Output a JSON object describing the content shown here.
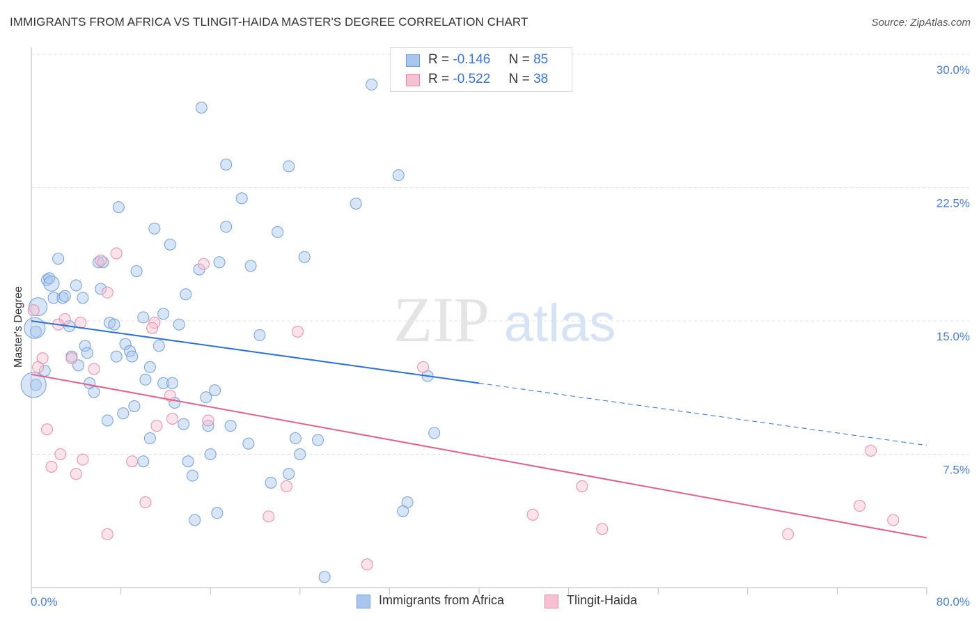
{
  "title": "IMMIGRANTS FROM AFRICA VS TLINGIT-HAIDA MASTER'S DEGREE CORRELATION CHART",
  "source": "Source: ZipAtlas.com",
  "watermark": {
    "zip": "ZIP",
    "atlas": "atlas"
  },
  "legend_top": [
    {
      "r_label": "R =",
      "r_value": "-0.146",
      "n_label": "N =",
      "n_value": "85",
      "color": "#a8c6ee",
      "border": "#6f9fdc"
    },
    {
      "r_label": "R =",
      "r_value": "-0.522",
      "n_label": "N =",
      "n_value": "38",
      "color": "#f6c0d0",
      "border": "#e98aa8"
    }
  ],
  "legend_bottom": [
    {
      "label": "Immigrants from Africa",
      "color": "#a8c6ee",
      "border": "#6f9fdc"
    },
    {
      "label": "Tlingit-Haida",
      "color": "#f6c0d0",
      "border": "#e98aa8"
    }
  ],
  "chart_data": {
    "type": "scatter",
    "title": "IMMIGRANTS FROM AFRICA VS TLINGIT-HAIDA MASTER'S DEGREE CORRELATION CHART",
    "xlabel": "",
    "ylabel": "Master's Degree",
    "xlim": [
      0,
      80
    ],
    "ylim": [
      0,
      30
    ],
    "x_ticks": [
      "0.0%",
      "80.0%"
    ],
    "y_ticks": [
      "7.5%",
      "15.0%",
      "22.5%",
      "30.0%"
    ],
    "y_tick_values": [
      7.5,
      15.0,
      22.5,
      30.0
    ],
    "grid": true,
    "legend_position": "top-center",
    "colors": {
      "blue": "#6f9fdc",
      "blue_fill": "#a8c6ee",
      "blue_line": "#2a6fd6",
      "pink": "#e98aa8",
      "pink_fill": "#f6c0d0",
      "pink_line": "#e0608c"
    },
    "series": [
      {
        "name": "Immigrants from Africa",
        "points": [
          [
            30.4,
            28.3
          ],
          [
            15.2,
            27.0
          ],
          [
            17.4,
            23.8
          ],
          [
            23.0,
            23.7
          ],
          [
            32.8,
            23.2
          ],
          [
            18.8,
            21.9
          ],
          [
            29.0,
            21.6
          ],
          [
            7.8,
            21.4
          ],
          [
            11.0,
            20.2
          ],
          [
            17.4,
            20.3
          ],
          [
            22.0,
            20.0
          ],
          [
            12.4,
            19.3
          ],
          [
            24.4,
            18.6
          ],
          [
            2.4,
            18.5
          ],
          [
            6.0,
            18.3
          ],
          [
            6.4,
            18.3
          ],
          [
            16.8,
            18.3
          ],
          [
            19.6,
            18.1
          ],
          [
            15.0,
            17.9
          ],
          [
            9.4,
            17.8
          ],
          [
            1.4,
            17.3
          ],
          [
            1.6,
            17.4
          ],
          [
            1.8,
            17.1
          ],
          [
            4.0,
            17.0
          ],
          [
            6.2,
            16.8
          ],
          [
            13.8,
            16.5
          ],
          [
            2.0,
            16.3
          ],
          [
            2.8,
            16.3
          ],
          [
            4.6,
            16.3
          ],
          [
            3.0,
            16.4
          ],
          [
            0.6,
            15.8
          ],
          [
            11.8,
            15.4
          ],
          [
            10.0,
            15.2
          ],
          [
            7.0,
            14.9
          ],
          [
            7.4,
            14.8
          ],
          [
            13.2,
            14.8
          ],
          [
            3.4,
            14.7
          ],
          [
            0.4,
            14.4
          ],
          [
            20.4,
            14.2
          ],
          [
            8.4,
            13.7
          ],
          [
            4.8,
            13.6
          ],
          [
            11.4,
            13.6
          ],
          [
            8.8,
            13.3
          ],
          [
            5.0,
            13.2
          ],
          [
            3.6,
            13.0
          ],
          [
            7.6,
            13.0
          ],
          [
            9.0,
            13.0
          ],
          [
            4.2,
            12.5
          ],
          [
            10.6,
            12.4
          ],
          [
            35.4,
            11.9
          ],
          [
            10.2,
            11.7
          ],
          [
            5.2,
            11.5
          ],
          [
            11.8,
            11.5
          ],
          [
            12.6,
            11.5
          ],
          [
            16.4,
            11.1
          ],
          [
            0.4,
            11.4
          ],
          [
            5.6,
            11.0
          ],
          [
            15.6,
            10.7
          ],
          [
            12.8,
            10.4
          ],
          [
            9.2,
            10.2
          ],
          [
            8.2,
            9.8
          ],
          [
            6.8,
            9.4
          ],
          [
            13.6,
            9.2
          ],
          [
            15.8,
            9.1
          ],
          [
            17.8,
            9.1
          ],
          [
            36.0,
            8.7
          ],
          [
            10.6,
            8.4
          ],
          [
            23.6,
            8.4
          ],
          [
            25.6,
            8.3
          ],
          [
            19.4,
            8.1
          ],
          [
            16.0,
            7.5
          ],
          [
            24.0,
            7.5
          ],
          [
            10.0,
            7.1
          ],
          [
            14.0,
            7.1
          ],
          [
            14.4,
            6.3
          ],
          [
            23.0,
            6.4
          ],
          [
            21.4,
            5.9
          ],
          [
            33.6,
            4.8
          ],
          [
            33.2,
            4.3
          ],
          [
            16.6,
            4.2
          ],
          [
            14.6,
            3.8
          ],
          [
            26.2,
            0.6
          ],
          [
            0.2,
            11.4
          ],
          [
            1.2,
            12.2
          ],
          [
            0.3,
            14.6
          ]
        ]
      },
      {
        "name": "Tlingit-Haida",
        "points": [
          [
            7.6,
            18.8
          ],
          [
            6.2,
            18.4
          ],
          [
            15.4,
            18.2
          ],
          [
            6.8,
            16.6
          ],
          [
            0.2,
            15.6
          ],
          [
            3.0,
            15.1
          ],
          [
            2.4,
            14.8
          ],
          [
            4.4,
            14.9
          ],
          [
            11.0,
            14.9
          ],
          [
            10.8,
            14.6
          ],
          [
            23.8,
            14.4
          ],
          [
            1.0,
            12.9
          ],
          [
            3.6,
            12.9
          ],
          [
            0.6,
            12.4
          ],
          [
            5.6,
            12.3
          ],
          [
            35.0,
            12.4
          ],
          [
            12.4,
            10.8
          ],
          [
            12.6,
            9.5
          ],
          [
            15.8,
            9.4
          ],
          [
            11.2,
            9.1
          ],
          [
            1.4,
            8.9
          ],
          [
            75.0,
            7.7
          ],
          [
            2.6,
            7.5
          ],
          [
            4.6,
            7.2
          ],
          [
            9.0,
            7.1
          ],
          [
            1.8,
            6.8
          ],
          [
            4.0,
            6.4
          ],
          [
            49.2,
            5.7
          ],
          [
            22.8,
            5.7
          ],
          [
            10.2,
            4.8
          ],
          [
            74.0,
            4.6
          ],
          [
            44.8,
            4.1
          ],
          [
            21.2,
            4.0
          ],
          [
            51.0,
            3.3
          ],
          [
            77.0,
            3.8
          ],
          [
            6.8,
            3.0
          ],
          [
            67.6,
            3.0
          ],
          [
            30.0,
            1.3
          ]
        ]
      }
    ],
    "trend_lines": [
      {
        "series": "Immigrants from Africa",
        "solid": [
          [
            0,
            15.0
          ],
          [
            40,
            11.5
          ]
        ],
        "dashed": [
          [
            40,
            11.5
          ],
          [
            80,
            8.0
          ]
        ]
      },
      {
        "series": "Tlingit-Haida",
        "solid": [
          [
            0,
            12.0
          ],
          [
            80,
            2.8
          ]
        ]
      }
    ]
  }
}
